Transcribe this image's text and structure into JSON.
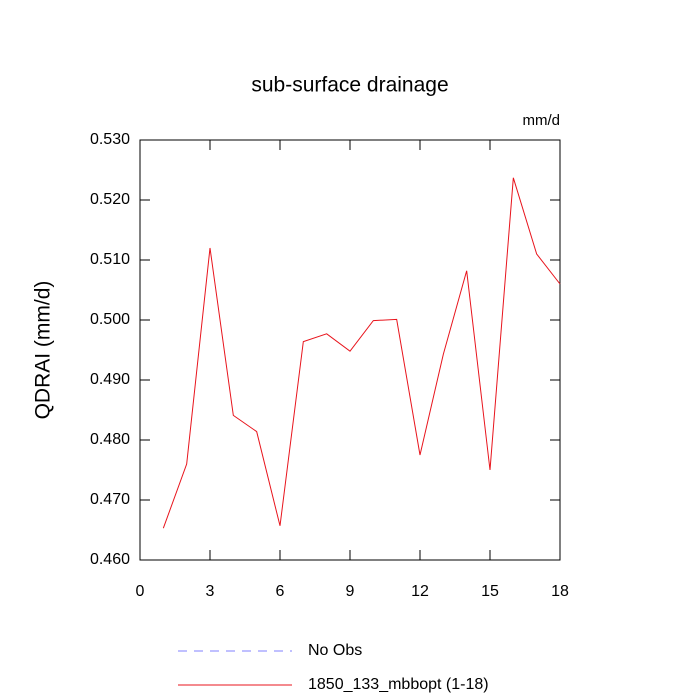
{
  "chart_data": {
    "type": "line",
    "title": "sub-surface drainage",
    "units_label": "mm/d",
    "ylabel": "QDRAI  (mm/d)",
    "x": [
      1,
      2,
      3,
      4,
      5,
      6,
      7,
      8,
      9,
      10,
      11,
      12,
      13,
      14,
      15,
      16,
      17,
      18
    ],
    "series": [
      {
        "name": "No Obs",
        "color": "#8080ff",
        "dashed": true,
        "values": [
          null,
          null,
          null,
          null,
          null,
          null,
          null,
          null,
          null,
          null,
          null,
          null,
          null,
          null,
          null,
          null,
          null,
          null
        ]
      },
      {
        "name": "1850_133_mbbopt (1-18)",
        "color": "#e8141c",
        "dashed": false,
        "values": [
          0.4653,
          0.476,
          0.512,
          0.4841,
          0.4814,
          0.4657,
          0.4964,
          0.4977,
          0.4948,
          0.4999,
          0.5001,
          0.4775,
          0.4943,
          0.5082,
          0.475,
          0.5237,
          0.511,
          0.506
        ]
      }
    ],
    "xlim": [
      0,
      18
    ],
    "xticks": [
      0,
      3,
      6,
      9,
      12,
      15,
      18
    ],
    "ylim": [
      0.46,
      0.53
    ],
    "yticks": [
      {
        "value": 0.46,
        "label": "0.460"
      },
      {
        "value": 0.47,
        "label": "0.470"
      },
      {
        "value": 0.48,
        "label": "0.480"
      },
      {
        "value": 0.49,
        "label": "0.490"
      },
      {
        "value": 0.5,
        "label": "0.500"
      },
      {
        "value": 0.51,
        "label": "0.510"
      },
      {
        "value": 0.52,
        "label": "0.520"
      },
      {
        "value": 0.53,
        "label": "0.530"
      }
    ],
    "grid": false,
    "legend": "bottom"
  }
}
